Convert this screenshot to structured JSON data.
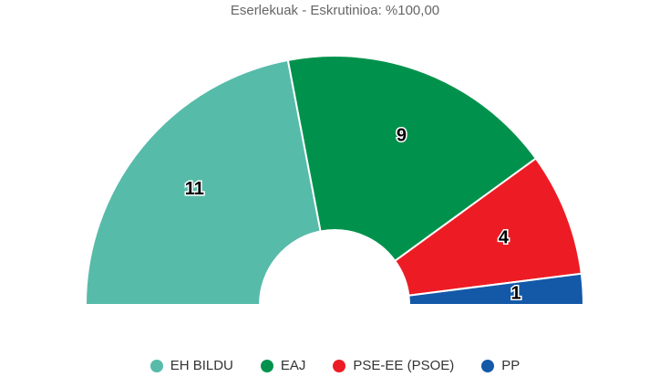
{
  "chart_data": {
    "type": "pie",
    "variant": "semicircle-parliament",
    "title": "Eserlekuak - Eskrutinioa: %100,00",
    "categories": [
      "EH BILDU",
      "EAJ",
      "PSE-EE (PSOE)",
      "PP"
    ],
    "values": [
      11,
      9,
      4,
      1
    ],
    "colors": [
      "#57bba9",
      "#00924c",
      "#ed1c24",
      "#1459a8"
    ],
    "data_labels": [
      "11",
      "9",
      "4",
      "1"
    ],
    "legend_position": "bottom"
  }
}
